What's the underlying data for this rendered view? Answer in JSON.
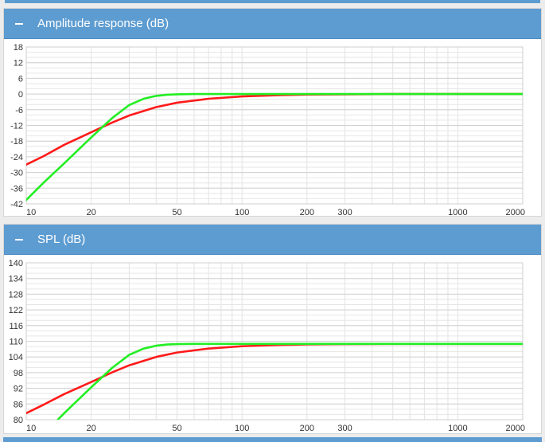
{
  "panels": [
    {
      "title": "Amplitude response (dB)",
      "toggle_symbol": "–",
      "chart_data": {
        "type": "line",
        "xscale": "log",
        "xlim": [
          10,
          2000
        ],
        "ylim": [
          -42,
          18
        ],
        "xticks": [
          10,
          20,
          50,
          100,
          200,
          300,
          1000,
          2000
        ],
        "yticks": [
          18,
          12,
          6,
          0,
          -6,
          -12,
          -18,
          -24,
          -30,
          -36,
          -42
        ],
        "grid": true,
        "series": [
          {
            "color": "#ff1a1a",
            "x": [
              10,
              12,
              15,
              20,
              25,
              30,
              40,
              50,
              70,
              100,
              150,
              200,
              300,
              500,
              1000,
              2000
            ],
            "y": [
              -27,
              -23.8,
              -19.4,
              -14.6,
              -10.9,
              -8.2,
              -5.0,
              -3.3,
              -1.8,
              -0.9,
              -0.4,
              -0.2,
              -0.1,
              0,
              0,
              0
            ]
          },
          {
            "color": "#22ee22",
            "x": [
              10,
              12,
              15,
              20,
              25,
              30,
              35,
              40,
              45,
              50,
              60,
              80,
              100,
              200,
              500,
              1000,
              2000
            ],
            "y": [
              -40.5,
              -34,
              -26.5,
              -16.6,
              -9.2,
              -4.2,
              -1.8,
              -0.7,
              -0.25,
              -0.1,
              0,
              0,
              0,
              0,
              0,
              0,
              0
            ]
          }
        ]
      }
    },
    {
      "title": "SPL (dB)",
      "toggle_symbol": "–",
      "chart_data": {
        "type": "line",
        "xscale": "log",
        "xlim": [
          10,
          2000
        ],
        "ylim": [
          80,
          140
        ],
        "xticks": [
          10,
          20,
          50,
          100,
          200,
          300,
          1000,
          2000
        ],
        "yticks": [
          140,
          134,
          128,
          122,
          116,
          110,
          104,
          98,
          92,
          86,
          80
        ],
        "grid": true,
        "series": [
          {
            "color": "#ff1a1a",
            "x": [
              10,
              12,
              15,
              20,
              25,
              30,
              40,
              50,
              70,
              100,
              150,
              200,
              300,
              500,
              1000,
              2000
            ],
            "y": [
              82.5,
              85.7,
              89.8,
              94.4,
              98.1,
              100.8,
              104.0,
              105.7,
              107.2,
              108.1,
              108.6,
              108.8,
              108.9,
              109,
              109,
              109
            ]
          },
          {
            "color": "#22ee22",
            "x": [
              14,
              15,
              20,
              25,
              30,
              35,
              40,
              45,
              50,
              60,
              80,
              100,
              200,
              500,
              1000,
              2000
            ],
            "y": [
              80,
              82.5,
              92.4,
              99.8,
              104.8,
              107.2,
              108.3,
              108.75,
              108.9,
              109,
              109,
              109,
              109,
              109,
              109,
              109
            ]
          }
        ]
      }
    }
  ]
}
